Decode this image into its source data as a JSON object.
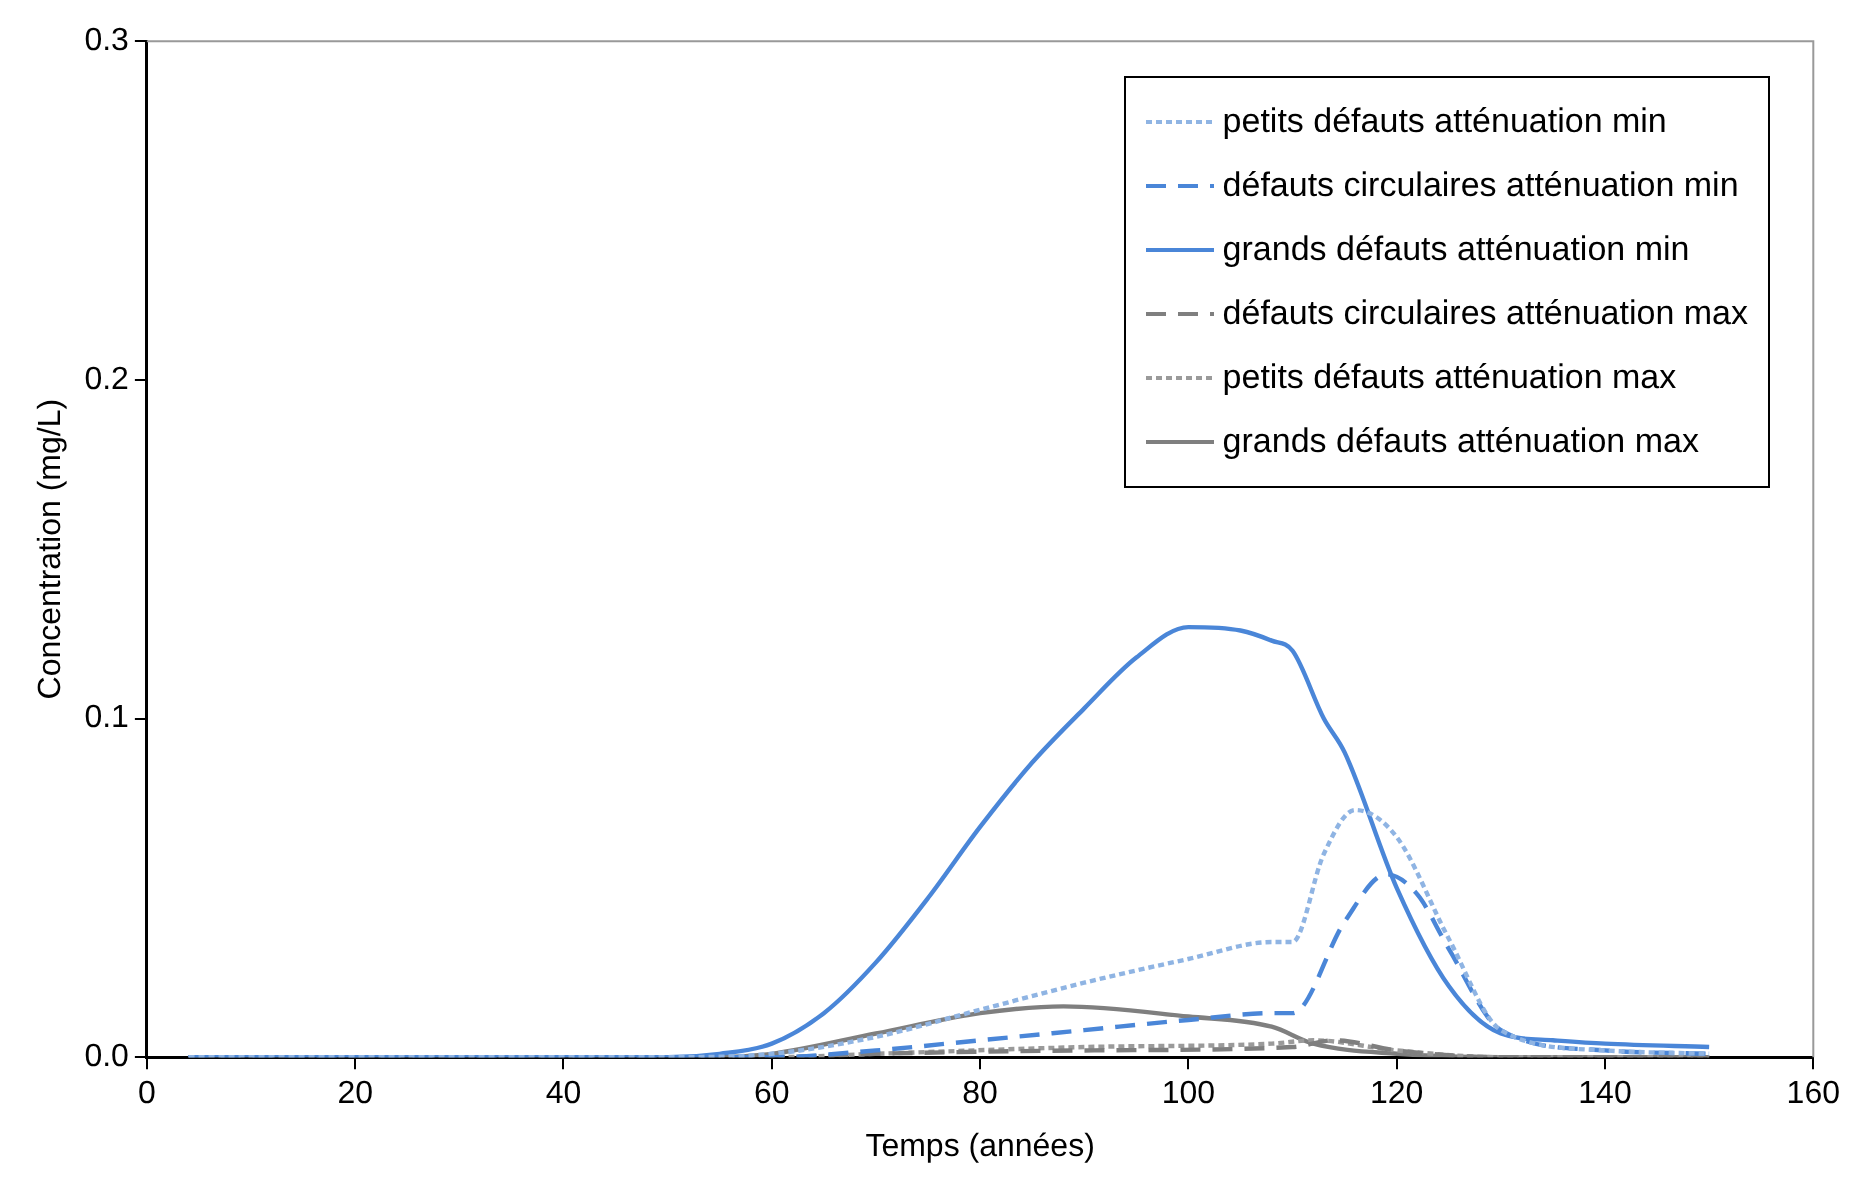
{
  "chart_data": {
    "type": "line",
    "xlabel": "Temps (années)",
    "ylabel": "Concentration (mg/L)",
    "xlim": [
      0,
      160
    ],
    "xticks": [
      0,
      20,
      40,
      60,
      80,
      100,
      120,
      140,
      160
    ],
    "ylim": [
      0,
      0.3
    ],
    "yticks": [
      {
        "value": 0,
        "label": "0.0"
      },
      {
        "value": 0.1,
        "label": "0.1"
      },
      {
        "value": 0.2,
        "label": "0.2"
      },
      {
        "value": 0.3,
        "label": "0.3"
      }
    ],
    "grid": false,
    "legend": "top right",
    "marker": "none",
    "series": [
      {
        "name": "petits défauts atténuation min",
        "color": "#8fb4e3",
        "line_style": "dotted",
        "x": [
          4,
          50,
          60,
          70,
          80,
          90,
          100,
          108,
          110,
          113,
          116,
          120,
          125,
          130,
          140,
          150
        ],
        "values": [
          0,
          0,
          0.001,
          0.006,
          0.014,
          0.022,
          0.029,
          0.034,
          0.034,
          0.06,
          0.073,
          0.065,
          0.035,
          0.008,
          0.002,
          0.001
        ]
      },
      {
        "name": "défauts circulaires atténuation min",
        "color": "#4a86d8",
        "line_style": "dashed",
        "x": [
          4,
          50,
          60,
          70,
          80,
          90,
          100,
          108,
          110,
          115,
          119,
          122,
          125,
          130,
          140,
          150
        ],
        "values": [
          0,
          0,
          0,
          0.002,
          0.005,
          0.008,
          0.011,
          0.013,
          0.013,
          0.04,
          0.054,
          0.048,
          0.032,
          0.008,
          0.002,
          0.001
        ]
      },
      {
        "name": "grands défauts atténuation min",
        "color": "#4a86d8",
        "line_style": "solid",
        "x": [
          4,
          50,
          55,
          60,
          65,
          70,
          75,
          80,
          85,
          90,
          95,
          100,
          105,
          108,
          110,
          113,
          115,
          120,
          125,
          130,
          135,
          140,
          150
        ],
        "values": [
          0,
          0,
          0.001,
          0.004,
          0.013,
          0.028,
          0.047,
          0.068,
          0.087,
          0.103,
          0.118,
          0.127,
          0.126,
          0.123,
          0.12,
          0.1,
          0.09,
          0.05,
          0.021,
          0.007,
          0.005,
          0.004,
          0.003
        ]
      },
      {
        "name": "défauts circulaires atténuation max",
        "color": "#7f7f7f",
        "line_style": "dashed",
        "x": [
          4,
          60,
          70,
          90,
          110,
          114,
          120,
          130,
          150
        ],
        "values": [
          0,
          0,
          0.001,
          0.002,
          0.003,
          0.005,
          0.002,
          0,
          0
        ]
      },
      {
        "name": "petits défauts atténuation max",
        "color": "#9a9a9a",
        "line_style": "dotted",
        "x": [
          4,
          60,
          70,
          90,
          108,
          112,
          120,
          130,
          150
        ],
        "values": [
          0,
          0,
          0.001,
          0.003,
          0.004,
          0.005,
          0.002,
          0,
          0
        ]
      },
      {
        "name": "grands défauts atténuation max",
        "color": "#7f7f7f",
        "line_style": "solid",
        "x": [
          4,
          55,
          60,
          70,
          80,
          88,
          100,
          108,
          112,
          120,
          130,
          150
        ],
        "values": [
          0,
          0,
          0.001,
          0.007,
          0.013,
          0.015,
          0.012,
          0.009,
          0.004,
          0.001,
          0,
          0
        ]
      }
    ]
  }
}
